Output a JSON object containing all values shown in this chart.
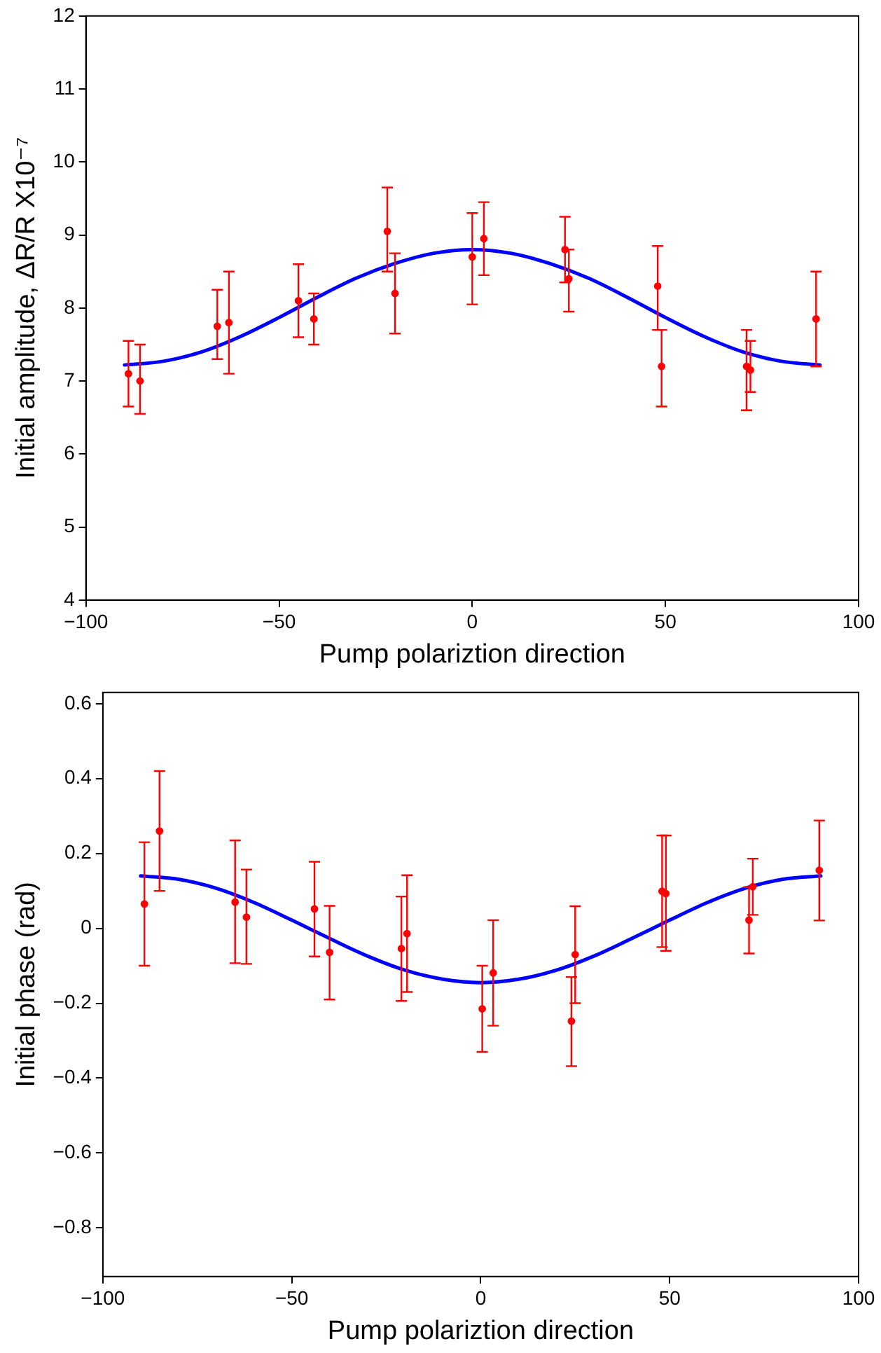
{
  "chart_data": [
    {
      "type": "scatter",
      "xlabel": "Pump polariztion direction",
      "ylabel": "Initial amplitude, ΔR/R X10⁻⁷",
      "xlim": [
        -100,
        100
      ],
      "xticks": [
        -100,
        -50,
        0,
        50,
        100
      ],
      "ylim": [
        4,
        12
      ],
      "yticks": [
        4,
        5,
        6,
        7,
        8,
        9,
        10,
        11,
        12
      ],
      "grid": false,
      "legend": false,
      "series": [
        {
          "color": "#ff0000",
          "marker": "circle",
          "x": [
            -89,
            -86,
            -66,
            -63,
            -45,
            -41,
            -22,
            -20,
            0,
            3,
            24,
            25,
            48,
            49,
            71,
            72,
            89
          ],
          "values": [
            7.1,
            7.0,
            7.75,
            7.8,
            8.1,
            7.85,
            9.05,
            8.2,
            8.7,
            8.95,
            8.8,
            8.4,
            8.3,
            7.2,
            7.2,
            7.15,
            7.85
          ],
          "errors": [
            [
              6.65,
              7.55
            ],
            [
              6.55,
              7.5
            ],
            [
              7.3,
              8.25
            ],
            [
              7.1,
              8.5
            ],
            [
              7.6,
              8.6
            ],
            [
              7.5,
              8.2
            ],
            [
              8.5,
              9.65
            ],
            [
              7.65,
              8.75
            ],
            [
              8.05,
              9.3
            ],
            [
              8.45,
              9.45
            ],
            [
              8.35,
              9.25
            ],
            [
              7.95,
              8.8
            ],
            [
              7.7,
              8.85
            ],
            [
              6.65,
              7.7
            ],
            [
              6.6,
              7.7
            ],
            [
              6.85,
              7.55
            ],
            [
              7.2,
              8.5
            ]
          ]
        },
        {
          "type": "line",
          "color": "#0000ff",
          "marker": "none",
          "x": [
            -90,
            -80,
            -70,
            -60,
            -50,
            -40,
            -30,
            -20,
            -10,
            0,
            10,
            20,
            30,
            40,
            50,
            60,
            70,
            80,
            90
          ],
          "values": [
            7.22,
            7.27,
            7.4,
            7.61,
            7.87,
            8.15,
            8.41,
            8.61,
            8.75,
            8.8,
            8.75,
            8.61,
            8.41,
            8.15,
            7.87,
            7.61,
            7.4,
            7.27,
            7.22
          ]
        }
      ]
    },
    {
      "type": "scatter",
      "xlabel": "Pump polariztion direction",
      "ylabel": "Initial phase (rad)",
      "xlim": [
        -100,
        100
      ],
      "xticks": [
        -100,
        -50,
        0,
        50,
        100
      ],
      "ylim": [
        -0.93,
        0.63
      ],
      "yticks": [
        -0.8,
        -0.6,
        -0.4,
        -0.2,
        0,
        0.2,
        0.4,
        0.6
      ],
      "grid": false,
      "legend": false,
      "series": [
        {
          "color": "#ff0000",
          "marker": "circle",
          "x": [
            -89,
            -85,
            -65,
            -62,
            -44,
            -40,
            -21,
            -19.5,
            0.4,
            3.3,
            24,
            25,
            48,
            49,
            71,
            72,
            89.6
          ],
          "values": [
            0.065,
            0.26,
            0.07,
            0.03,
            0.052,
            -0.064,
            -0.054,
            -0.014,
            -0.215,
            -0.119,
            -0.248,
            -0.07,
            0.099,
            0.093,
            0.022,
            0.111,
            0.155
          ],
          "errors": [
            [
              -0.1,
              0.23
            ],
            [
              0.1,
              0.42
            ],
            [
              -0.093,
              0.235
            ],
            [
              -0.095,
              0.157
            ],
            [
              -0.075,
              0.178
            ],
            [
              -0.19,
              0.06
            ],
            [
              -0.194,
              0.085
            ],
            [
              -0.17,
              0.142
            ],
            [
              -0.33,
              -0.1
            ],
            [
              -0.26,
              0.022
            ],
            [
              -0.368,
              -0.13
            ],
            [
              -0.2,
              0.059
            ],
            [
              -0.05,
              0.248
            ],
            [
              -0.06,
              0.248
            ],
            [
              -0.067,
              0.11
            ],
            [
              0.036,
              0.186
            ],
            [
              0.021,
              0.288
            ]
          ]
        },
        {
          "type": "line",
          "color": "#0000ff",
          "marker": "none",
          "x": [
            -90,
            -80,
            -70,
            -60,
            -50,
            -40,
            -30,
            -20,
            -10,
            0,
            10,
            20,
            30,
            40,
            50,
            60,
            70,
            80,
            90
          ],
          "values": [
            0.14,
            0.131,
            0.107,
            0.069,
            0.022,
            -0.027,
            -0.074,
            -0.112,
            -0.136,
            -0.145,
            -0.136,
            -0.112,
            -0.074,
            -0.027,
            0.022,
            0.069,
            0.107,
            0.131,
            0.14
          ]
        }
      ]
    }
  ]
}
